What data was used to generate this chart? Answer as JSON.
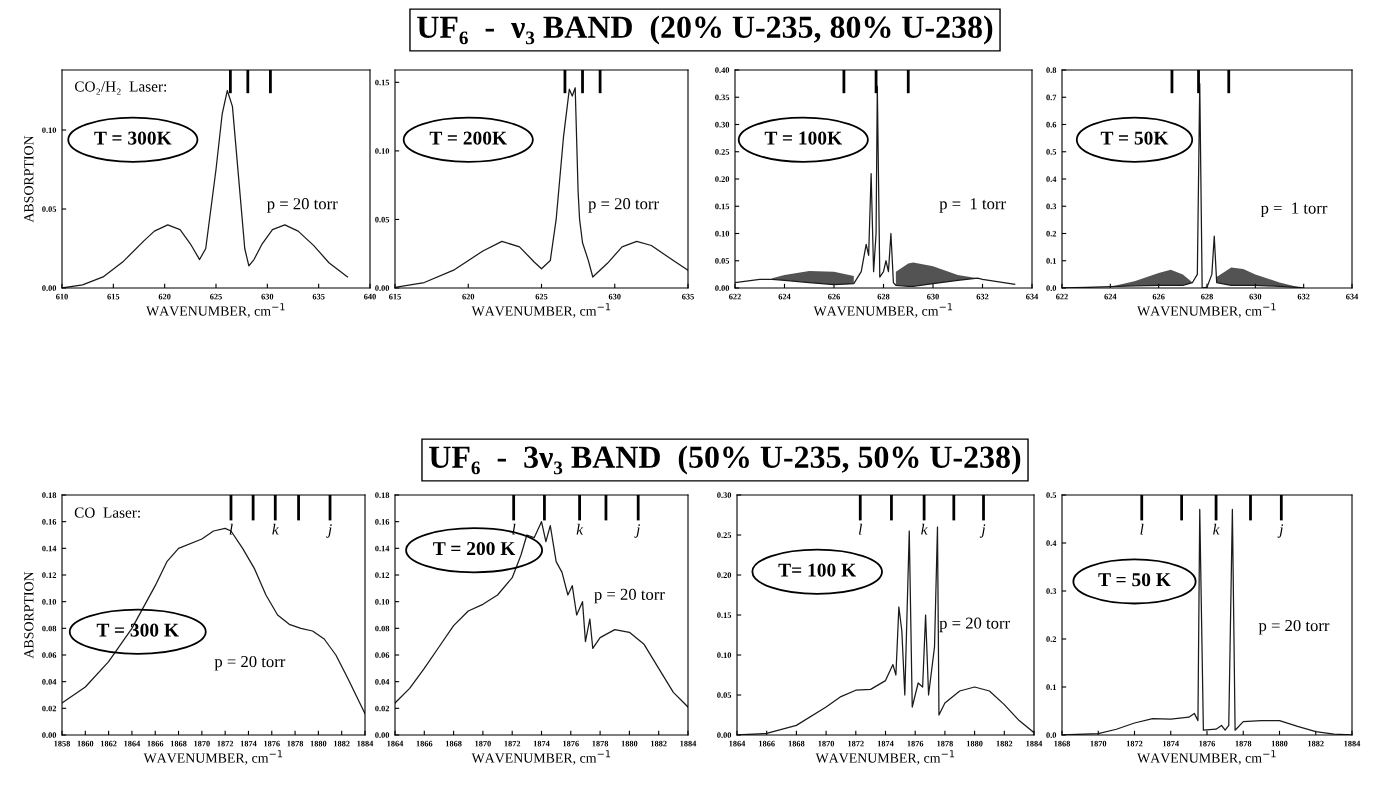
{
  "chart_data": [
    {
      "type": "line",
      "xlabel": "WAVENUMBER, cm$^{−1}$",
      "ylabel": "ABSORPTION",
      "annotations": [
        "CO₂/H₂  Laser:",
        "T = 300K",
        "p = 20 torr"
      ],
      "series": [
        {
          "color": "#1a1a1a",
          "x": [
            610,
            612,
            614,
            616,
            618,
            619,
            620.3,
            621.5,
            622.5,
            623.4,
            624,
            625,
            625.6,
            626.1,
            626.6,
            627.2,
            627.8,
            628.2,
            628.7,
            629.5,
            630.5,
            631.7,
            633,
            634.5,
            636,
            637.8
          ],
          "values": [
            0.0,
            0.002,
            0.007,
            0.017,
            0.03,
            0.036,
            0.04,
            0.037,
            0.028,
            0.018,
            0.025,
            0.075,
            0.11,
            0.125,
            0.115,
            0.07,
            0.025,
            0.014,
            0.018,
            0.028,
            0.037,
            0.04,
            0.036,
            0.027,
            0.016,
            0.007
          ]
        }
      ],
      "xlim": [
        610,
        640
      ],
      "xticks": [
        610,
        615,
        620,
        625,
        630,
        635,
        640
      ],
      "ylim": [
        0,
        0.138
      ],
      "yticks": [
        {
          "value": 0,
          "label": "0.00"
        },
        {
          "value": 0.05,
          "label": "0.05"
        },
        {
          "value": 0.1,
          "label": "0.10"
        }
      ],
      "ref_lines": [
        {
          "axis": "x",
          "value": 626.4
        },
        {
          "axis": "x",
          "value": 628.1
        },
        {
          "axis": "x",
          "value": 630.3
        }
      ]
    },
    {
      "type": "line",
      "title": "UF₆  -  ν₃ BAND  (20% U-235, 80% U-238)",
      "xlabel": "WAVENUMBER, cm$^{−1}$",
      "annotations": [
        "T = 200K",
        "p = 20 torr"
      ],
      "series": [
        {
          "color": "#1a1a1a",
          "x": [
            615,
            617,
            619,
            621,
            622.3,
            623.5,
            624.5,
            625,
            625.6,
            626,
            626.5,
            626.9,
            627.1,
            627.3,
            627.5,
            627.6,
            627.8,
            628.2,
            628.5,
            629.5,
            630.5,
            631.5,
            632.5,
            634,
            635
          ],
          "values": [
            0.0005,
            0.004,
            0.013,
            0.027,
            0.034,
            0.03,
            0.019,
            0.014,
            0.02,
            0.05,
            0.11,
            0.145,
            0.14,
            0.146,
            0.07,
            0.05,
            0.033,
            0.02,
            0.008,
            0.018,
            0.03,
            0.034,
            0.031,
            0.02,
            0.013
          ]
        }
      ],
      "xlim": [
        615,
        635
      ],
      "xticks": [
        615,
        620,
        625,
        630,
        635
      ],
      "ylim": [
        0,
        0.159
      ],
      "yticks": [
        {
          "value": 0,
          "label": "0.00"
        },
        {
          "value": 0.05,
          "label": "0.05"
        },
        {
          "value": 0.1,
          "label": "0.10"
        },
        {
          "value": 0.15,
          "label": "0.15"
        }
      ],
      "ref_lines": [
        {
          "axis": "x",
          "value": 626.6
        },
        {
          "axis": "x",
          "value": 627.8
        },
        {
          "axis": "x",
          "value": 629.0
        }
      ]
    },
    {
      "type": "line",
      "xlabel": "WAVENUMBER, cm$^{−1}$",
      "annotations": [
        "T = 100K",
        "p =  1 torr"
      ],
      "series": [
        {
          "color": "#1a1a1a",
          "x": [
            622,
            623,
            623.5,
            624,
            625,
            626,
            626.8,
            627.1,
            627.3,
            627.4,
            627.5,
            627.6,
            627.7,
            627.75,
            627.85,
            628.0,
            628.1,
            628.2,
            628.3,
            628.4,
            628.5,
            629,
            629.2,
            630,
            631,
            631.8,
            632,
            633.3
          ],
          "values": [
            0.01,
            0.016,
            0.016,
            0.014,
            0.01,
            0.006,
            0.008,
            0.03,
            0.08,
            0.06,
            0.21,
            0.03,
            0.1,
            0.37,
            0.02,
            0.03,
            0.05,
            0.03,
            0.1,
            0.01,
            0.005,
            0.003,
            0.003,
            0.008,
            0.014,
            0.018,
            0.016,
            0.007
          ],
          "lower": [
            null,
            null,
            0.016,
            0.014,
            0.01,
            0.006,
            0.008,
            null,
            null,
            null,
            null,
            null,
            null,
            null,
            null,
            null,
            null,
            null,
            null,
            null,
            0.005,
            0.003,
            0.003,
            0.008,
            0.014,
            0.018,
            null,
            null
          ],
          "upper": [
            null,
            null,
            0.018,
            0.024,
            0.031,
            0.03,
            0.022,
            null,
            null,
            null,
            null,
            null,
            null,
            null,
            null,
            null,
            null,
            null,
            null,
            null,
            0.03,
            0.045,
            0.047,
            0.04,
            0.024,
            0.018,
            null,
            null
          ]
        }
      ],
      "xlim": [
        622,
        634
      ],
      "xticks": [
        622,
        624,
        626,
        628,
        630,
        632,
        634
      ],
      "ylim": [
        0,
        0.4
      ],
      "yticks": [
        {
          "value": 0,
          "label": "0.00"
        },
        {
          "value": 0.05,
          "label": "0.05"
        },
        {
          "value": 0.1,
          "label": "0.10"
        },
        {
          "value": 0.15,
          "label": "0.15"
        },
        {
          "value": 0.2,
          "label": "0.20"
        },
        {
          "value": 0.25,
          "label": "0.25"
        },
        {
          "value": 0.3,
          "label": "0.30"
        },
        {
          "value": 0.35,
          "label": "0.35"
        },
        {
          "value": 0.4,
          "label": "0.40"
        }
      ],
      "ref_lines": [
        {
          "axis": "x",
          "value": 626.4
        },
        {
          "axis": "x",
          "value": 627.7
        },
        {
          "axis": "x",
          "value": 629.0
        }
      ]
    },
    {
      "type": "line",
      "xlabel": "WAVENUMBER, cm$^{−1}$",
      "annotations": [
        "T = 50K",
        "p =  1 torr"
      ],
      "series": [
        {
          "color": "#1a1a1a",
          "x": [
            622,
            623,
            624,
            625,
            626,
            626.5,
            627,
            627.4,
            627.6,
            627.7,
            627.8,
            628,
            628.2,
            628.3,
            628.4,
            629,
            629.5,
            630,
            631,
            631.8,
            632
          ],
          "values": [
            0.0,
            0.002,
            0.005,
            0.008,
            0.01,
            0.01,
            0.01,
            0.02,
            0.05,
            0.75,
            0.0,
            0.003,
            0.05,
            0.19,
            0.02,
            0.01,
            0.01,
            0.01,
            0.006,
            0.002,
            0.0
          ],
          "lower": [
            null,
            null,
            0.005,
            0.008,
            0.01,
            0.01,
            0.01,
            0.02,
            null,
            null,
            null,
            null,
            null,
            null,
            0.02,
            0.01,
            0.01,
            0.01,
            0.006,
            0.002,
            null
          ],
          "upper": [
            null,
            null,
            0.005,
            0.025,
            0.055,
            0.067,
            0.05,
            0.02,
            null,
            null,
            null,
            null,
            null,
            null,
            0.04,
            0.075,
            0.07,
            0.05,
            0.02,
            0.003,
            null
          ]
        }
      ],
      "xlim": [
        622,
        634
      ],
      "xticks": [
        622,
        624,
        626,
        628,
        630,
        632,
        634
      ],
      "ylim": [
        0,
        0.8
      ],
      "yticks": [
        {
          "value": 0,
          "label": "0.0"
        },
        0.1,
        0.2,
        0.3,
        0.4,
        0.5,
        0.6,
        0.7,
        0.8
      ],
      "ref_lines": [
        {
          "axis": "x",
          "value": 626.55
        },
        {
          "axis": "x",
          "value": 627.65
        },
        {
          "axis": "x",
          "value": 628.9
        }
      ]
    },
    {
      "type": "line",
      "xlabel": "WAVENUMBER, cm$^{−1}$",
      "ylabel": "ABSORPTION",
      "annotations": [
        "CO  Laser:",
        "T = 300 K",
        "p = 20 torr"
      ],
      "series": [
        {
          "color": "#1a1a1a",
          "x": [
            1858,
            1860,
            1862,
            1864,
            1866,
            1867,
            1868,
            1870,
            1871,
            1872,
            1872.5,
            1873.5,
            1874.5,
            1875.5,
            1876.5,
            1877.5,
            1878.5,
            1879.5,
            1880.5,
            1881.5,
            1882.5,
            1883.5,
            1884
          ],
          "values": [
            0.024,
            0.036,
            0.055,
            0.08,
            0.112,
            0.13,
            0.14,
            0.147,
            0.153,
            0.155,
            0.153,
            0.14,
            0.125,
            0.105,
            0.09,
            0.083,
            0.08,
            0.078,
            0.072,
            0.06,
            0.043,
            0.025,
            0.016
          ]
        }
      ],
      "xlim": [
        1858,
        1884
      ],
      "xticks": [
        1858,
        1860,
        1862,
        1864,
        1866,
        1868,
        1870,
        1872,
        1874,
        1876,
        1878,
        1880,
        1882,
        1884
      ],
      "ylim": [
        0,
        0.18
      ],
      "yticks": [
        {
          "value": 0,
          "label": "0.00"
        },
        {
          "value": 0.02,
          "label": "0.02"
        },
        {
          "value": 0.04,
          "label": "0.04"
        },
        {
          "value": 0.06,
          "label": "0.06"
        },
        {
          "value": 0.08,
          "label": "0.08"
        },
        {
          "value": 0.1,
          "label": "0.10"
        },
        {
          "value": 0.12,
          "label": "0.12"
        },
        {
          "value": 0.14,
          "label": "0.14"
        },
        {
          "value": 0.16,
          "label": "0.16"
        },
        {
          "value": 0.18,
          "label": "0.18"
        }
      ],
      "ref_lines": [
        {
          "axis": "x",
          "value": 1872.5,
          "label": "l"
        },
        {
          "axis": "x",
          "value": 1874.4
        },
        {
          "axis": "x",
          "value": 1876.3,
          "label": "k"
        },
        {
          "axis": "x",
          "value": 1878.3
        },
        {
          "axis": "x",
          "value": 1881.0,
          "label": "j"
        }
      ]
    },
    {
      "type": "line",
      "xlabel": "WAVENUMBER, cm$^{−1}$",
      "annotations": [
        "T = 200 K",
        "p = 20 torr"
      ],
      "series": [
        {
          "color": "#1a1a1a",
          "x": [
            1864,
            1865,
            1866,
            1867,
            1868,
            1869,
            1870,
            1871,
            1872,
            1872.6,
            1873,
            1873.5,
            1874,
            1874.3,
            1874.6,
            1875,
            1875.4,
            1875.8,
            1876.1,
            1876.4,
            1876.8,
            1877,
            1877.3,
            1877.5,
            1878,
            1879,
            1880,
            1881,
            1882,
            1883,
            1884
          ],
          "values": [
            0.024,
            0.035,
            0.05,
            0.066,
            0.082,
            0.093,
            0.098,
            0.105,
            0.118,
            0.135,
            0.15,
            0.148,
            0.16,
            0.145,
            0.157,
            0.13,
            0.122,
            0.105,
            0.112,
            0.09,
            0.1,
            0.07,
            0.087,
            0.065,
            0.073,
            0.079,
            0.077,
            0.068,
            0.05,
            0.032,
            0.021
          ]
        }
      ],
      "xlim": [
        1864,
        1884
      ],
      "xticks": [
        1864,
        1866,
        1868,
        1870,
        1872,
        1874,
        1876,
        1878,
        1880,
        1882,
        1884
      ],
      "ylim": [
        0,
        0.18
      ],
      "yticks": [
        {
          "value": 0,
          "label": "0.00"
        },
        {
          "value": 0.02,
          "label": "0.02"
        },
        {
          "value": 0.04,
          "label": "0.04"
        },
        {
          "value": 0.06,
          "label": "0.06"
        },
        {
          "value": 0.08,
          "label": "0.08"
        },
        {
          "value": 0.1,
          "label": "0.10"
        },
        {
          "value": 0.12,
          "label": "0.12"
        },
        {
          "value": 0.14,
          "label": "0.14"
        },
        {
          "value": 0.16,
          "label": "0.16"
        },
        {
          "value": 0.18,
          "label": "0.18"
        }
      ],
      "ref_lines": [
        {
          "axis": "x",
          "value": 1872.1,
          "label": "l"
        },
        {
          "axis": "x",
          "value": 1874.2
        },
        {
          "axis": "x",
          "value": 1876.6,
          "label": "k"
        },
        {
          "axis": "x",
          "value": 1878.4
        },
        {
          "axis": "x",
          "value": 1880.6,
          "label": "j"
        }
      ]
    },
    {
      "type": "line",
      "title": "UF₆  -  3ν₃ BAND  (50% U-235, 50% U-238)",
      "xlabel": "WAVENUMBER, cm$^{−1}$",
      "annotations": [
        "T= 100 K",
        "p = 20 torr"
      ],
      "series": [
        {
          "color": "#1a1a1a",
          "x": [
            1864,
            1866,
            1868,
            1870,
            1871,
            1872,
            1873,
            1874,
            1874.5,
            1874.7,
            1874.9,
            1875.1,
            1875.3,
            1875.6,
            1875.8,
            1876.2,
            1876.5,
            1876.7,
            1876.9,
            1877.3,
            1877.5,
            1877.6,
            1878,
            1879,
            1880,
            1881,
            1882,
            1883,
            1884
          ],
          "values": [
            0.0,
            0.002,
            0.012,
            0.035,
            0.048,
            0.056,
            0.057,
            0.068,
            0.088,
            0.075,
            0.16,
            0.13,
            0.05,
            0.255,
            0.035,
            0.065,
            0.06,
            0.15,
            0.05,
            0.11,
            0.26,
            0.025,
            0.04,
            0.055,
            0.06,
            0.055,
            0.038,
            0.018,
            0.003
          ]
        }
      ],
      "xlim": [
        1864,
        1884
      ],
      "xticks": [
        1864,
        1866,
        1868,
        1870,
        1872,
        1874,
        1876,
        1878,
        1880,
        1882,
        1884
      ],
      "ylim": [
        0,
        0.3
      ],
      "yticks": [
        {
          "value": 0,
          "label": "0.00"
        },
        {
          "value": 0.05,
          "label": "0.05"
        },
        {
          "value": 0.1,
          "label": "0.10"
        },
        {
          "value": 0.15,
          "label": "0.15"
        },
        {
          "value": 0.2,
          "label": "0.20"
        },
        {
          "value": 0.25,
          "label": "0.25"
        },
        {
          "value": 0.3,
          "label": "0.30"
        }
      ],
      "ref_lines": [
        {
          "axis": "x",
          "value": 1872.3,
          "label": "l"
        },
        {
          "axis": "x",
          "value": 1874.4
        },
        {
          "axis": "x",
          "value": 1876.6,
          "label": "k"
        },
        {
          "axis": "x",
          "value": 1878.6
        },
        {
          "axis": "x",
          "value": 1880.6,
          "label": "j"
        }
      ]
    },
    {
      "type": "line",
      "xlabel": "WAVENUMBER, cm$^{−1}$",
      "annotations": [
        "T = 50 K",
        "p = 20 torr"
      ],
      "series": [
        {
          "color": "#1a1a1a",
          "x": [
            1868,
            1870,
            1871,
            1872,
            1873,
            1874,
            1875,
            1875.3,
            1875.5,
            1875.6,
            1875.8,
            1876.5,
            1876.8,
            1877,
            1877.2,
            1877.4,
            1877.55,
            1878,
            1879,
            1880,
            1881,
            1882,
            1883,
            1884
          ],
          "values": [
            0.0,
            0.003,
            0.012,
            0.025,
            0.034,
            0.033,
            0.037,
            0.045,
            0.03,
            0.47,
            0.01,
            0.012,
            0.02,
            0.01,
            0.02,
            0.47,
            0.01,
            0.028,
            0.03,
            0.03,
            0.018,
            0.007,
            0.002,
            0.0
          ]
        }
      ],
      "xlim": [
        1868,
        1884
      ],
      "xticks": [
        1868,
        1870,
        1872,
        1874,
        1876,
        1878,
        1880,
        1882,
        1884
      ],
      "ylim": [
        0,
        0.5
      ],
      "yticks": [
        {
          "value": 0,
          "label": "0.0"
        },
        0.1,
        0.2,
        0.3,
        0.4,
        0.5
      ],
      "ref_lines": [
        {
          "axis": "x",
          "value": 1872.4,
          "label": "l"
        },
        {
          "axis": "x",
          "value": 1874.6
        },
        {
          "axis": "x",
          "value": 1876.5,
          "label": "k"
        },
        {
          "axis": "x",
          "value": 1878.4
        },
        {
          "axis": "x",
          "value": 1880.1,
          "label": "j"
        }
      ]
    }
  ]
}
